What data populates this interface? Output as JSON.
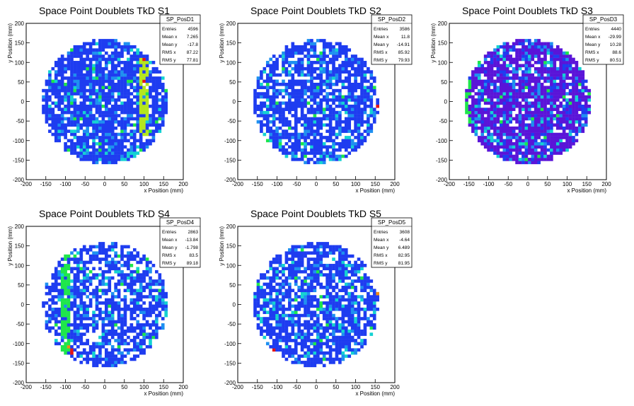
{
  "chart_data": [
    {
      "type": "heatmap",
      "title": "Space Point Doublets TkD S1",
      "xlabel": "x Position (mm)",
      "ylabel": "y Position (mm)",
      "xlim": [
        -200,
        200
      ],
      "ylim": [
        -200,
        200
      ],
      "xticks": [
        "-200",
        "-150",
        "-100",
        "-50",
        "0",
        "50",
        "100",
        "150",
        "200"
      ],
      "yticks": [
        "-200",
        "-150",
        "-100",
        "-50",
        "0",
        "50",
        "100",
        "150",
        "200"
      ],
      "stats": {
        "name": "SP_PosD1",
        "rows": [
          {
            "label": "Entries",
            "value": "4596"
          },
          {
            "label": "Mean x",
            "value": "7.265"
          },
          {
            "label": "Mean y",
            "value": "-17.8"
          },
          {
            "label": "RMS x",
            "value": "87.22"
          },
          {
            "label": "RMS y",
            "value": "77.81"
          }
        ]
      },
      "pattern": {
        "seed": 11,
        "empty": 0.17,
        "base": "blue",
        "hotspots": [
          {
            "x": 97,
            "y": 50,
            "value": "red"
          },
          {
            "x": 97,
            "y": 110,
            "value": "red"
          }
        ],
        "bands": [
          {
            "x": 100,
            "from": -85,
            "to": 115,
            "value": "yellow-green"
          }
        ]
      }
    },
    {
      "type": "heatmap",
      "title": "Space Point Doublets TkD S2",
      "xlabel": "x Position (mm)",
      "ylabel": "y Position (mm)",
      "xlim": [
        -200,
        200
      ],
      "ylim": [
        -200,
        200
      ],
      "xticks": [
        "-200",
        "-150",
        "-100",
        "-50",
        "0",
        "50",
        "100",
        "150",
        "200"
      ],
      "yticks": [
        "-200",
        "-150",
        "-100",
        "-50",
        "0",
        "50",
        "100",
        "150",
        "200"
      ],
      "stats": {
        "name": "SP_PosD2",
        "rows": [
          {
            "label": "Entries",
            "value": "3586"
          },
          {
            "label": "Mean x",
            "value": "11.8"
          },
          {
            "label": "Mean y",
            "value": "-14.91"
          },
          {
            "label": "RMS x",
            "value": "85.92"
          },
          {
            "label": "RMS y",
            "value": "79.93"
          }
        ]
      },
      "pattern": {
        "seed": 23,
        "empty": 0.24,
        "base": "blue",
        "hotspots": [
          {
            "x": 160,
            "y": -15,
            "value": "red"
          }
        ],
        "bands": []
      }
    },
    {
      "type": "heatmap",
      "title": "Space Point Doublets TkD S3",
      "xlabel": "x Position (mm)",
      "ylabel": "y Position (mm)",
      "xlim": [
        -200,
        200
      ],
      "ylim": [
        -200,
        200
      ],
      "xticks": [
        "-200",
        "-150",
        "-100",
        "-50",
        "0",
        "50",
        "100",
        "150",
        "200"
      ],
      "yticks": [
        "-200",
        "-150",
        "-100",
        "-50",
        "0",
        "50",
        "100",
        "150",
        "200"
      ],
      "stats": {
        "name": "SP_PosD3",
        "rows": [
          {
            "label": "Entries",
            "value": "4440"
          },
          {
            "label": "Mean x",
            "value": "-29.99"
          },
          {
            "label": "Mean y",
            "value": "10.28"
          },
          {
            "label": "RMS x",
            "value": "88.6"
          },
          {
            "label": "RMS y",
            "value": "80.51"
          }
        ]
      },
      "pattern": {
        "seed": 37,
        "empty": 0.11,
        "base": "purple",
        "hotspots": [],
        "bands": [
          {
            "x": -150,
            "from": -60,
            "to": 90,
            "value": "green"
          }
        ]
      }
    },
    {
      "type": "heatmap",
      "title": "Space Point Doublets TkD S4",
      "xlabel": "x Position (mm)",
      "ylabel": "y Position (mm)",
      "xlim": [
        -200,
        200
      ],
      "ylim": [
        -200,
        200
      ],
      "xticks": [
        "-200",
        "-150",
        "-100",
        "-50",
        "0",
        "50",
        "100",
        "150",
        "200"
      ],
      "yticks": [
        "-200",
        "-150",
        "-100",
        "-50",
        "0",
        "50",
        "100",
        "150",
        "200"
      ],
      "stats": {
        "name": "SP_PosD4",
        "rows": [
          {
            "label": "Entries",
            "value": "2863"
          },
          {
            "label": "Mean x",
            "value": "-13.84"
          },
          {
            "label": "Mean y",
            "value": "-1.798"
          },
          {
            "label": "RMS x",
            "value": "83.5"
          },
          {
            "label": "RMS y",
            "value": "89.18"
          }
        ]
      },
      "pattern": {
        "seed": 53,
        "empty": 0.32,
        "base": "blue",
        "hotspots": [
          {
            "x": -85,
            "y": -120,
            "value": "red"
          },
          {
            "x": -90,
            "y": -110,
            "value": "orange"
          }
        ],
        "bands": [
          {
            "x": -100,
            "from": -130,
            "to": 140,
            "value": "green"
          }
        ]
      }
    },
    {
      "type": "heatmap",
      "title": "Space Point Doublets TkD S5",
      "xlabel": "x Position (mm)",
      "ylabel": "y Position (mm)",
      "xlim": [
        -200,
        200
      ],
      "ylim": [
        -200,
        200
      ],
      "xticks": [
        "-200",
        "-150",
        "-100",
        "-50",
        "0",
        "50",
        "100",
        "150",
        "200"
      ],
      "yticks": [
        "-200",
        "-150",
        "-100",
        "-50",
        "0",
        "50",
        "100",
        "150",
        "200"
      ],
      "stats": {
        "name": "SP_PosD5",
        "rows": [
          {
            "label": "Entries",
            "value": "3608"
          },
          {
            "label": "Mean x",
            "value": "-4.64"
          },
          {
            "label": "Mean y",
            "value": "6.489"
          },
          {
            "label": "RMS x",
            "value": "82.95"
          },
          {
            "label": "RMS y",
            "value": "81.95"
          }
        ]
      },
      "pattern": {
        "seed": 71,
        "empty": 0.26,
        "base": "blue",
        "hotspots": [
          {
            "x": -110,
            "y": -115,
            "value": "red"
          },
          {
            "x": 155,
            "y": 30,
            "value": "orange"
          }
        ],
        "bands": []
      }
    }
  ],
  "palette": {
    "purple": "#5a14d8",
    "blue": "#1e3cf0",
    "light-blue": "#1e90f0",
    "cyan": "#14d2d2",
    "green": "#1ee64b",
    "yellow-green": "#b4e61e",
    "yellow": "#f0e61e",
    "orange": "#f08c14",
    "red": "#e61414"
  }
}
